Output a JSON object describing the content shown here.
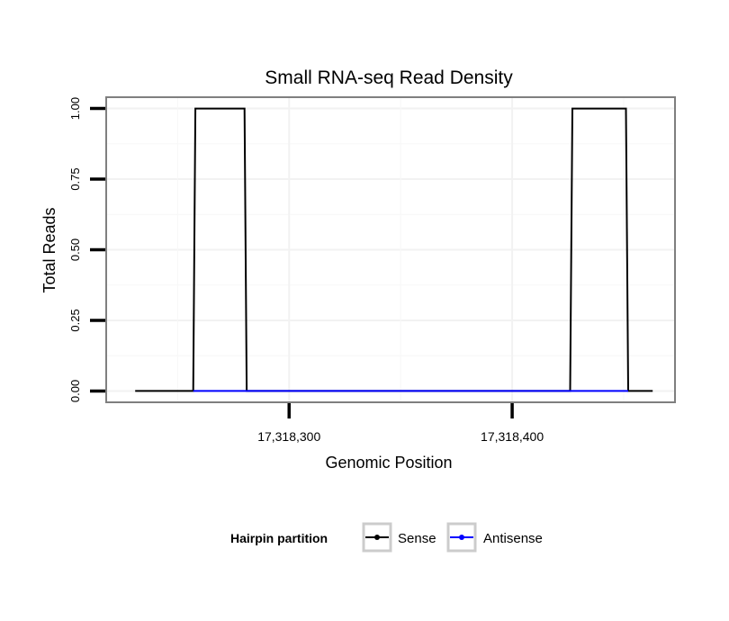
{
  "chart_data": {
    "type": "line",
    "title": "Small RNA-seq Read Density",
    "xlabel": "Genomic Position",
    "ylabel": "Total Reads",
    "xlim": [
      17318218,
      17318473
    ],
    "ylim": [
      -0.04,
      1.04
    ],
    "x_ticks": [
      17318300,
      17318400
    ],
    "x_tick_labels": [
      "17,318,300",
      "17,318,400"
    ],
    "y_ticks": [
      0,
      0.25,
      0.5,
      0.75,
      1.0
    ],
    "y_tick_labels": [
      "0.00",
      "0.25",
      "0.50",
      "0.75",
      "1.00"
    ],
    "grid": true,
    "legend": {
      "title": "Hairpin partition",
      "position": "bottom",
      "entries": [
        "Sense",
        "Antisense"
      ]
    },
    "series": [
      {
        "name": "Sense",
        "color": "#000000",
        "x": [
          17318231,
          17318257,
          17318258,
          17318280,
          17318281,
          17318426,
          17318427,
          17318451,
          17318452,
          17318463
        ],
        "y": [
          0,
          0,
          1,
          1,
          0,
          0,
          1,
          1,
          0,
          0
        ]
      },
      {
        "name": "Antisense",
        "color": "#0000ff",
        "x": [
          17318257,
          17318281,
          17318426,
          17318452
        ],
        "y": [
          0,
          0,
          0,
          0
        ]
      }
    ]
  }
}
